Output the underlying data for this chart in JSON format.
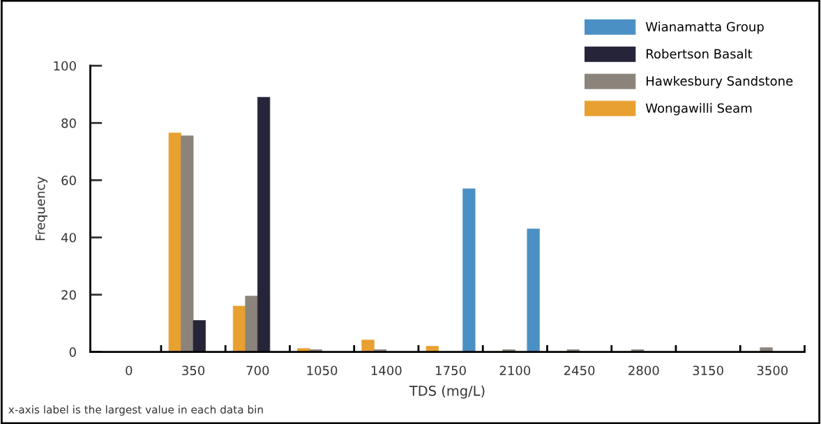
{
  "chart_data": {
    "type": "bar",
    "xlabel": "TDS (mg/L)",
    "ylabel": "Frequency",
    "categories": [
      "0",
      "350",
      "700",
      "1050",
      "1400",
      "1750",
      "2100",
      "2450",
      "2800",
      "3150",
      "3500"
    ],
    "series": [
      {
        "name": "Wongawilli Seam",
        "color": "#e8a030",
        "values": [
          null,
          76.5,
          16,
          1.2,
          4.2,
          2,
          null,
          null,
          null,
          null,
          null
        ]
      },
      {
        "name": "Hawkesbury Sandstone",
        "color": "#8a847c",
        "values": [
          null,
          75.5,
          19.5,
          0.8,
          0.8,
          null,
          0.8,
          0.8,
          0.8,
          null,
          1.5
        ]
      },
      {
        "name": "Robertson Basalt",
        "color": "#262438",
        "values": [
          null,
          11,
          89,
          null,
          null,
          null,
          null,
          null,
          null,
          null,
          null
        ]
      },
      {
        "name": "Wianamatta Group",
        "color": "#4a90c4",
        "values": [
          null,
          null,
          null,
          null,
          null,
          57,
          43,
          null,
          null,
          null,
          null
        ]
      }
    ],
    "ylim": [
      0,
      100
    ],
    "yticks": [
      0,
      20,
      40,
      60,
      80,
      100
    ],
    "legend": "top right",
    "annotations": [
      "x-axis label is the largest value in each data bin"
    ]
  }
}
